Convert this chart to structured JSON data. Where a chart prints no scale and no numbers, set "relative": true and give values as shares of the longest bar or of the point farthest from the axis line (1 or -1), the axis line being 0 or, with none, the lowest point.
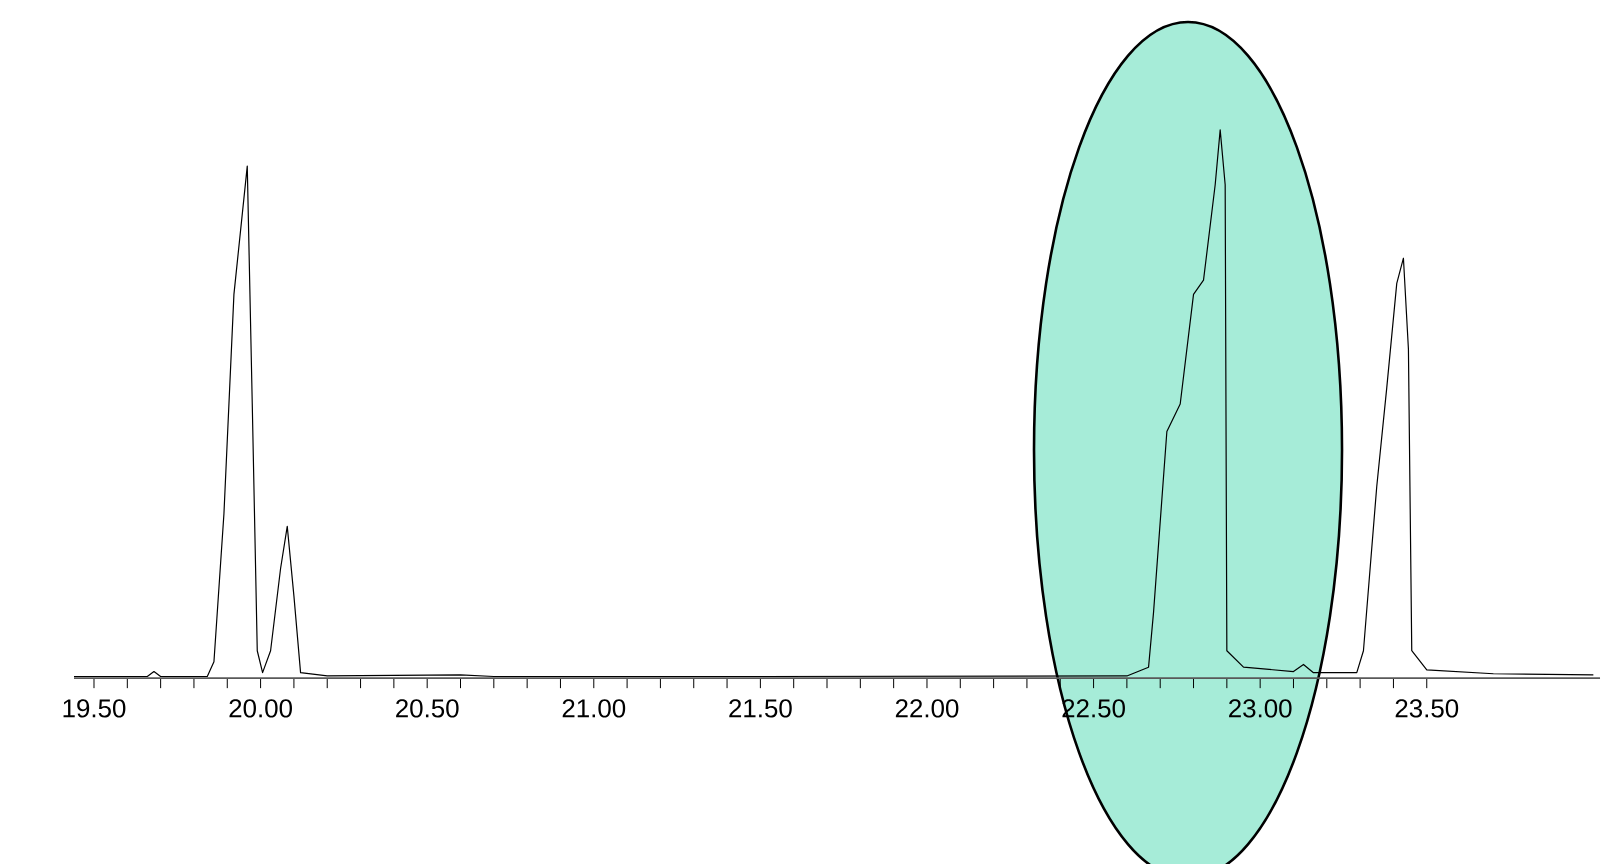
{
  "chart_data": {
    "type": "line",
    "relative": true,
    "x": [
      19.44,
      19.6,
      19.66,
      19.68,
      19.7,
      19.84,
      19.86,
      19.89,
      19.92,
      19.96,
      19.975,
      19.99,
      20.006,
      20.03,
      20.06,
      20.08,
      20.1,
      20.12,
      20.2,
      20.6,
      20.7,
      21.5,
      22.6,
      22.665,
      22.68,
      22.72,
      22.76,
      22.8,
      22.83,
      22.865,
      22.88,
      22.895,
      22.9,
      22.95,
      23.1,
      23.13,
      23.16,
      23.29,
      23.31,
      23.35,
      23.38,
      23.41,
      23.43,
      23.445,
      23.455,
      23.5,
      23.7,
      24.0
    ],
    "series": [
      {
        "color": "#000000",
        "values": [
          0.003,
          0.003,
          0.003,
          0.012,
          0.003,
          0.003,
          0.03,
          0.3,
          0.7,
          0.934,
          0.5,
          0.05,
          0.01,
          0.05,
          0.2,
          0.277,
          0.15,
          0.01,
          0.004,
          0.006,
          0.003,
          0.003,
          0.004,
          0.02,
          0.12,
          0.45,
          0.5,
          0.7,
          0.726,
          0.9,
          1.0,
          0.9,
          0.05,
          0.02,
          0.012,
          0.025,
          0.01,
          0.01,
          0.05,
          0.35,
          0.53,
          0.72,
          0.766,
          0.6,
          0.05,
          0.015,
          0.008,
          0.006
        ]
      }
    ],
    "xlim": [
      19.44,
      24.02
    ],
    "xticks": [
      {
        "value": 19.5,
        "label": "19.50"
      },
      {
        "value": 20.0,
        "label": "20.00"
      },
      {
        "value": 20.5,
        "label": "20.50"
      },
      {
        "value": 21.0,
        "label": "21.00"
      },
      {
        "value": 21.5,
        "label": "21.50"
      },
      {
        "value": 22.0,
        "label": "22.00"
      },
      {
        "value": 22.5,
        "label": "22.50"
      },
      {
        "value": 23.0,
        "label": "23.00"
      },
      {
        "value": 23.5,
        "label": "23.50"
      }
    ],
    "line_style": "solid",
    "marker": "none",
    "grid": false
  }
}
